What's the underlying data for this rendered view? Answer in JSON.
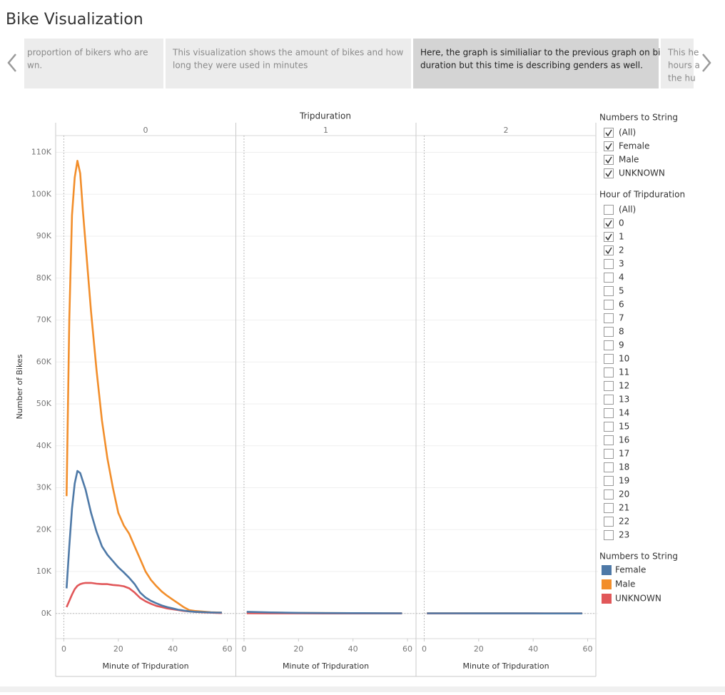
{
  "header": {
    "title": "Bike Visualization"
  },
  "story_points": [
    {
      "lines": [
        "proportion of bikers who are",
        "wn."
      ],
      "selected": false
    },
    {
      "lines": [
        "This visualization shows the amount of bikes and how",
        "long they were used in minutes"
      ],
      "selected": false
    },
    {
      "lines": [
        "Here, the graph is similialiar to the previous graph on bike",
        "duration but this time is describing genders as well."
      ],
      "selected": true
    },
    {
      "lines": [
        "This he",
        "hours a",
        "the hu"
      ],
      "selected": false
    }
  ],
  "filters": [
    {
      "title": "Numbers to String",
      "items": [
        {
          "label": "(All)",
          "checked": true
        },
        {
          "label": "Female",
          "checked": true
        },
        {
          "label": "Male",
          "checked": true
        },
        {
          "label": "UNKNOWN",
          "checked": true
        }
      ]
    },
    {
      "title": "Hour of Tripduration",
      "items": [
        {
          "label": "(All)",
          "checked": false
        },
        {
          "label": "0",
          "checked": true
        },
        {
          "label": "1",
          "checked": true
        },
        {
          "label": "2",
          "checked": true
        },
        {
          "label": "3",
          "checked": false
        },
        {
          "label": "4",
          "checked": false
        },
        {
          "label": "5",
          "checked": false
        },
        {
          "label": "6",
          "checked": false
        },
        {
          "label": "7",
          "checked": false
        },
        {
          "label": "8",
          "checked": false
        },
        {
          "label": "9",
          "checked": false
        },
        {
          "label": "10",
          "checked": false
        },
        {
          "label": "11",
          "checked": false
        },
        {
          "label": "12",
          "checked": false
        },
        {
          "label": "13",
          "checked": false
        },
        {
          "label": "14",
          "checked": false
        },
        {
          "label": "15",
          "checked": false
        },
        {
          "label": "16",
          "checked": false
        },
        {
          "label": "17",
          "checked": false
        },
        {
          "label": "18",
          "checked": false
        },
        {
          "label": "19",
          "checked": false
        },
        {
          "label": "20",
          "checked": false
        },
        {
          "label": "21",
          "checked": false
        },
        {
          "label": "22",
          "checked": false
        },
        {
          "label": "23",
          "checked": false
        }
      ]
    }
  ],
  "chart_data": {
    "type": "line",
    "facet_title": "Tripduration",
    "xlabel": "Minute of Tripduration",
    "ylabel": "Number of Bikes",
    "legend_title": "Numbers to String",
    "xlim": [
      -3,
      63
    ],
    "xticks": [
      0,
      20,
      40,
      60
    ],
    "ylim": [
      -6000,
      114000
    ],
    "yticks": [
      {
        "value": 0,
        "label": "0K"
      },
      {
        "value": 10000,
        "label": "10K"
      },
      {
        "value": 20000,
        "label": "20K"
      },
      {
        "value": 30000,
        "label": "30K"
      },
      {
        "value": 40000,
        "label": "40K"
      },
      {
        "value": 50000,
        "label": "50K"
      },
      {
        "value": 60000,
        "label": "60K"
      },
      {
        "value": 70000,
        "label": "70K"
      },
      {
        "value": 80000,
        "label": "80K"
      },
      {
        "value": 90000,
        "label": "90K"
      },
      {
        "value": 100000,
        "label": "100K"
      },
      {
        "value": 110000,
        "label": "110K"
      }
    ],
    "grid": true,
    "series": [
      {
        "name": "Female",
        "color": "#4e79a7"
      },
      {
        "name": "Male",
        "color": "#f28e2b"
      },
      {
        "name": "UNKNOWN",
        "color": "#e15759"
      }
    ],
    "panels": [
      {
        "name": "0",
        "x": [
          1,
          2,
          3,
          4,
          5,
          6,
          7,
          8,
          10,
          12,
          14,
          16,
          18,
          20,
          22,
          24,
          26,
          28,
          30,
          32,
          34,
          36,
          38,
          40,
          42,
          44,
          46,
          48,
          50,
          52,
          54,
          56,
          58
        ],
        "values": [
          [
            6000,
            16000,
            25000,
            31000,
            34000,
            33500,
            31500,
            29500,
            24000,
            19500,
            16000,
            14000,
            12500,
            11000,
            9800,
            8500,
            7000,
            5000,
            3800,
            3000,
            2400,
            1900,
            1500,
            1200,
            900,
            700,
            500,
            400,
            350,
            300,
            250,
            220,
            200
          ],
          [
            28000,
            70000,
            95000,
            104000,
            108000,
            105000,
            96000,
            88000,
            72000,
            58000,
            46000,
            37000,
            30000,
            24000,
            21000,
            19000,
            16000,
            13000,
            10000,
            8000,
            6500,
            5200,
            4200,
            3300,
            2400,
            1500,
            800,
            600,
            500,
            400,
            300,
            250,
            200
          ],
          [
            1500,
            3000,
            4500,
            5800,
            6600,
            7000,
            7200,
            7300,
            7300,
            7100,
            7000,
            7000,
            6800,
            6700,
            6500,
            6000,
            5000,
            3700,
            2900,
            2300,
            1800,
            1500,
            1200,
            1000,
            800,
            600,
            500,
            400,
            300,
            250,
            200,
            150,
            100
          ]
        ]
      },
      {
        "name": "1",
        "x": [
          1,
          10,
          20,
          30,
          40,
          50,
          58
        ],
        "values": [
          [
            400,
            250,
            150,
            100,
            80,
            60,
            50
          ],
          [
            300,
            200,
            120,
            90,
            70,
            50,
            40
          ],
          [
            50,
            30,
            20,
            10,
            10,
            10,
            10
          ]
        ]
      },
      {
        "name": "2",
        "x": [
          1,
          10,
          20,
          30,
          40,
          50,
          58
        ],
        "values": [
          [
            50,
            40,
            30,
            20,
            20,
            10,
            10
          ],
          [
            40,
            30,
            20,
            20,
            10,
            10,
            10
          ],
          [
            10,
            10,
            10,
            10,
            10,
            10,
            10
          ]
        ]
      }
    ]
  }
}
